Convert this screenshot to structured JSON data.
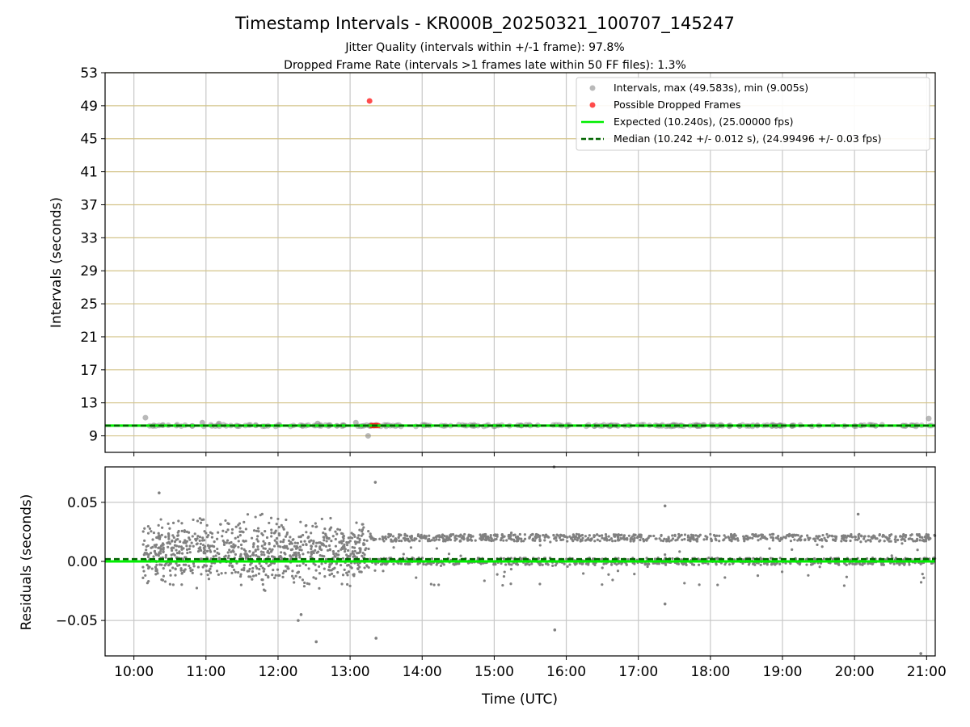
{
  "header": {
    "title": "Timestamp Intervals - KR000B_20250321_100707_145247",
    "subtitle1": "Jitter Quality (intervals within +/-1 frame): 97.8%",
    "subtitle2": "Dropped Frame Rate (intervals >1 frames late within 50 FF files): 1.3%"
  },
  "colors": {
    "scatter": "#808080",
    "dropped": "#ff0000",
    "expected": "#00ee00",
    "median": "#006400",
    "hgrid_top": "#d4c48a",
    "grid": "#c8c8c8"
  },
  "chart_data": [
    {
      "type": "scatter",
      "ylabel": "Intervals (seconds)",
      "xlim": [
        9.6,
        21.12
      ],
      "ylim": [
        7,
        53
      ],
      "yticks": [
        "9",
        "13",
        "17",
        "21",
        "25",
        "29",
        "33",
        "37",
        "41",
        "45",
        "49",
        "53"
      ],
      "legend_position": "top-right",
      "legend": [
        {
          "label": "Intervals, max (49.583s), min (9.005s)",
          "marker": "gray-dot"
        },
        {
          "label": "Possible Dropped Frames",
          "marker": "red-dot"
        },
        {
          "label": "Expected (10.240s), (25.00000 fps)",
          "marker": "green-line"
        },
        {
          "label": "Median (10.242 +/- 0.012 s), (24.99496 +/- 0.03 fps)",
          "marker": "darkgreen-dashed-line"
        }
      ],
      "expected": 10.24,
      "median": 10.242,
      "interval_range": [
        10.14,
        10.35
      ],
      "outliers": [
        {
          "x": 10.16,
          "y": 11.2
        },
        {
          "x": 10.95,
          "y": 10.6
        },
        {
          "x": 11.18,
          "y": 10.5
        },
        {
          "x": 12.55,
          "y": 10.5
        },
        {
          "x": 12.72,
          "y": 10.3
        },
        {
          "x": 13.08,
          "y": 10.6
        },
        {
          "x": 13.25,
          "y": 9.0
        },
        {
          "x": 21.03,
          "y": 11.1
        }
      ],
      "dropped_frames": [
        {
          "x": 13.27,
          "y": 49.58
        },
        {
          "x": 13.3,
          "y": 10.24
        },
        {
          "x": 13.33,
          "y": 10.24
        },
        {
          "x": 13.36,
          "y": 10.24
        },
        {
          "x": 13.39,
          "y": 10.24
        }
      ]
    },
    {
      "type": "scatter",
      "xlabel": "Time (UTC)",
      "ylabel": "Residuals (seconds)",
      "xlim": [
        9.6,
        21.12
      ],
      "ylim": [
        -0.08,
        0.08
      ],
      "yticks": [
        "−0.05",
        "0.00",
        "0.05"
      ],
      "xticks": [
        "10:00",
        "11:00",
        "12:00",
        "13:00",
        "14:00",
        "15:00",
        "16:00",
        "17:00",
        "18:00",
        "19:00",
        "20:00",
        "21:00"
      ],
      "expected_residual": 0.0,
      "median_residual": 0.002,
      "noisy_period": {
        "x": [
          10.12,
          13.27
        ],
        "y": [
          -0.03,
          0.045
        ]
      },
      "stable_period": {
        "x": [
          13.27,
          21.12
        ],
        "bands": [
          0.0,
          0.02
        ],
        "band_spread": 0.003
      },
      "outliers": [
        {
          "x": 10.35,
          "y": 0.058
        },
        {
          "x": 12.32,
          "y": -0.045
        },
        {
          "x": 12.28,
          "y": -0.05
        },
        {
          "x": 12.53,
          "y": -0.068
        },
        {
          "x": 13.35,
          "y": 0.067
        },
        {
          "x": 13.36,
          "y": -0.065
        },
        {
          "x": 15.83,
          "y": 0.08
        },
        {
          "x": 15.84,
          "y": -0.058
        },
        {
          "x": 17.37,
          "y": 0.047
        },
        {
          "x": 17.37,
          "y": -0.036
        },
        {
          "x": 20.05,
          "y": 0.04
        },
        {
          "x": 20.92,
          "y": -0.078
        }
      ]
    }
  ]
}
